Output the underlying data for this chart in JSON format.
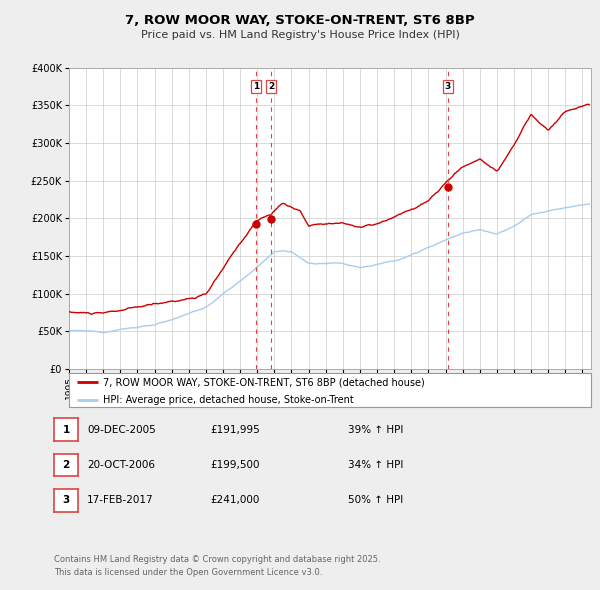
{
  "title": "7, ROW MOOR WAY, STOKE-ON-TRENT, ST6 8BP",
  "subtitle": "Price paid vs. HM Land Registry's House Price Index (HPI)",
  "background_color": "#eeeeee",
  "plot_bg_color": "#ffffff",
  "red_line_color": "#cc0000",
  "blue_line_color": "#aaccee",
  "grid_color": "#cccccc",
  "sale_marker_color": "#cc0000",
  "vline_color": "#dd4444",
  "ylim": [
    0,
    400000
  ],
  "yticks": [
    0,
    50000,
    100000,
    150000,
    200000,
    250000,
    300000,
    350000,
    400000
  ],
  "ytick_labels": [
    "£0",
    "£50K",
    "£100K",
    "£150K",
    "£200K",
    "£250K",
    "£300K",
    "£350K",
    "£400K"
  ],
  "xlim_start": 1995.0,
  "xlim_end": 2025.5,
  "xtick_years": [
    1995,
    1996,
    1997,
    1998,
    1999,
    2000,
    2001,
    2002,
    2003,
    2004,
    2005,
    2006,
    2007,
    2008,
    2009,
    2010,
    2011,
    2012,
    2013,
    2014,
    2015,
    2016,
    2017,
    2018,
    2019,
    2020,
    2021,
    2022,
    2023,
    2024,
    2025
  ],
  "sale1_x": 2005.93,
  "sale1_y": 191995,
  "sale1_label": "1",
  "sale1_date": "09-DEC-2005",
  "sale1_price": "£191,995",
  "sale1_hpi": "39% ↑ HPI",
  "sale2_x": 2006.8,
  "sale2_y": 199500,
  "sale2_label": "2",
  "sale2_date": "20-OCT-2006",
  "sale2_price": "£199,500",
  "sale2_hpi": "34% ↑ HPI",
  "sale3_x": 2017.12,
  "sale3_y": 241000,
  "sale3_label": "3",
  "sale3_date": "17-FEB-2017",
  "sale3_price": "£241,000",
  "sale3_hpi": "50% ↑ HPI",
  "legend1_label": "7, ROW MOOR WAY, STOKE-ON-TRENT, ST6 8BP (detached house)",
  "legend2_label": "HPI: Average price, detached house, Stoke-on-Trent",
  "footer_line1": "Contains HM Land Registry data © Crown copyright and database right 2025.",
  "footer_line2": "This data is licensed under the Open Government Licence v3.0.",
  "red_key_years": [
    1995,
    1997,
    2000,
    2003,
    2005.93,
    2006.8,
    2007.5,
    2008.5,
    2009,
    2010,
    2011,
    2012,
    2013,
    2014,
    2015,
    2016,
    2017.12,
    2018,
    2019,
    2020,
    2021,
    2022,
    2023,
    2024,
    2025.3
  ],
  "red_key_vals": [
    75000,
    72000,
    82000,
    95000,
    191995,
    199500,
    215000,
    205000,
    185000,
    190000,
    190000,
    185000,
    188000,
    195000,
    205000,
    215000,
    241000,
    260000,
    270000,
    255000,
    290000,
    330000,
    310000,
    335000,
    345000
  ],
  "blue_key_years": [
    1995,
    1997,
    2000,
    2003,
    2005,
    2007,
    2008,
    2009,
    2010,
    2011,
    2012,
    2013,
    2014,
    2015,
    2016,
    2017,
    2018,
    2019,
    2020,
    2021,
    2022,
    2023,
    2024,
    2025.3
  ],
  "blue_key_vals": [
    50000,
    50000,
    60000,
    80000,
    115000,
    155000,
    155000,
    140000,
    140000,
    140000,
    135000,
    140000,
    145000,
    155000,
    165000,
    175000,
    185000,
    190000,
    185000,
    195000,
    210000,
    215000,
    220000,
    225000
  ]
}
